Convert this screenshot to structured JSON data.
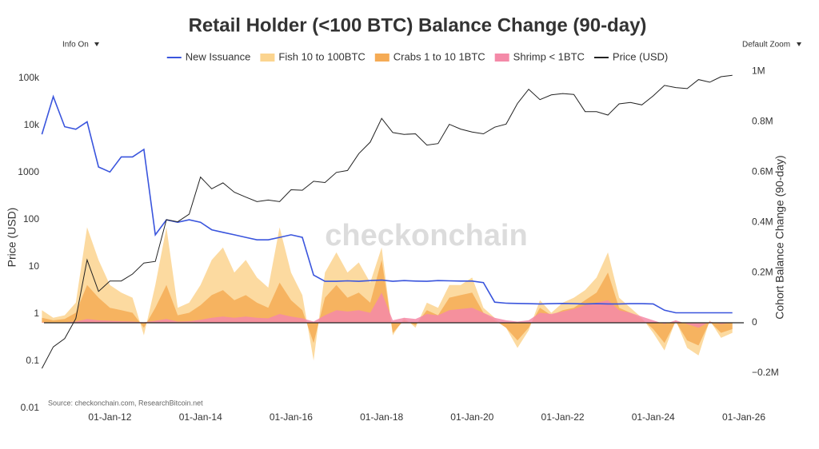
{
  "ui": {
    "info_toggle": "Info On",
    "zoom_menu": "Default Zoom"
  },
  "chart_data": {
    "type": "combo",
    "title": "Retail Holder (<100 BTC) Balance Change (90-day)",
    "y_label": "Price (USD)",
    "y2_label": "Cohort Balance Change (90-day)",
    "watermark": "checkonchain",
    "source": "Source: checkonchain.com, ResearchBitcoin.net",
    "y_scale": "log",
    "xlim": [
      "2010-07-18",
      "2026-01-01"
    ],
    "xticks": [
      {
        "value": "2012-01-01",
        "label": "01-Jan-12"
      },
      {
        "value": "2014-01-01",
        "label": "01-Jan-14"
      },
      {
        "value": "2016-01-01",
        "label": "01-Jan-16"
      },
      {
        "value": "2018-01-01",
        "label": "01-Jan-18"
      },
      {
        "value": "2020-01-01",
        "label": "01-Jan-20"
      },
      {
        "value": "2022-01-01",
        "label": "01-Jan-22"
      },
      {
        "value": "2024-01-01",
        "label": "01-Jan-24"
      },
      {
        "value": "2026-01-01",
        "label": "01-Jan-26"
      }
    ],
    "ylim": [
      0.01,
      200000
    ],
    "yticks": [
      0.01,
      0.1,
      1,
      10,
      100,
      1000,
      {
        "value": 10000,
        "label": "10k"
      },
      {
        "value": 100000,
        "label": "100k"
      }
    ],
    "y2lim": [
      -340000,
      1030000
    ],
    "y2ticks": [
      {
        "value": -200000,
        "label": "−0.2M"
      },
      0,
      {
        "value": 200000,
        "label": "0.2M"
      },
      {
        "value": 400000,
        "label": "0.4M"
      },
      {
        "value": 600000,
        "label": "0.6M"
      },
      {
        "value": 800000,
        "label": "0.8M"
      },
      {
        "value": 1000000,
        "label": "1M"
      }
    ],
    "x": [
      "2010-07-01",
      "2010-10-01",
      "2011-01-01",
      "2011-04-01",
      "2011-07-01",
      "2011-10-01",
      "2012-01-01",
      "2012-04-01",
      "2012-07-01",
      "2012-10-01",
      "2013-01-01",
      "2013-04-01",
      "2013-07-01",
      "2013-10-01",
      "2014-01-01",
      "2014-04-01",
      "2014-07-01",
      "2014-10-01",
      "2015-01-01",
      "2015-04-01",
      "2015-07-01",
      "2015-10-01",
      "2016-01-01",
      "2016-04-01",
      "2016-07-01",
      "2016-10-01",
      "2017-01-01",
      "2017-04-01",
      "2017-07-01",
      "2017-10-01",
      "2018-01-01",
      "2018-04-01",
      "2018-07-01",
      "2018-10-01",
      "2019-01-01",
      "2019-04-01",
      "2019-07-01",
      "2019-10-01",
      "2020-01-01",
      "2020-04-01",
      "2020-07-01",
      "2020-10-01",
      "2021-01-01",
      "2021-04-01",
      "2021-07-01",
      "2021-10-01",
      "2022-01-01",
      "2022-04-01",
      "2022-07-01",
      "2022-10-01",
      "2023-01-01",
      "2023-04-01",
      "2023-07-01",
      "2023-10-01",
      "2024-01-01",
      "2024-04-01",
      "2024-07-01",
      "2024-10-01",
      "2025-01-01",
      "2025-04-01",
      "2025-07-01",
      "2025-10-01"
    ],
    "series": [
      {
        "name": "Fish 10 to 100BTC",
        "type": "area",
        "axis": "y2",
        "color": "#fbd48f",
        "values": [
          50000,
          20000,
          30000,
          80000,
          380000,
          250000,
          150000,
          120000,
          100000,
          -50000,
          150000,
          380000,
          60000,
          80000,
          150000,
          250000,
          300000,
          200000,
          250000,
          180000,
          140000,
          380000,
          200000,
          110000,
          -150000,
          200000,
          280000,
          200000,
          240000,
          160000,
          300000,
          -50000,
          20000,
          -20000,
          80000,
          60000,
          150000,
          150000,
          180000,
          60000,
          20000,
          -20000,
          -100000,
          -30000,
          90000,
          40000,
          80000,
          100000,
          130000,
          180000,
          280000,
          100000,
          60000,
          20000,
          -40000,
          -110000,
          10000,
          -100000,
          -130000,
          10000,
          -60000,
          -40000
        ]
      },
      {
        "name": "Crabs 1 to 10 1BTC",
        "type": "area",
        "axis": "y2",
        "color": "#f5ab55",
        "values": [
          20000,
          10000,
          15000,
          40000,
          150000,
          100000,
          60000,
          50000,
          40000,
          -20000,
          60000,
          150000,
          30000,
          40000,
          70000,
          110000,
          130000,
          90000,
          110000,
          80000,
          60000,
          160000,
          90000,
          50000,
          -80000,
          100000,
          150000,
          100000,
          120000,
          80000,
          250000,
          -40000,
          10000,
          -10000,
          50000,
          30000,
          100000,
          110000,
          120000,
          40000,
          10000,
          -20000,
          -70000,
          -20000,
          60000,
          30000,
          50000,
          60000,
          90000,
          120000,
          200000,
          60000,
          40000,
          15000,
          -25000,
          -80000,
          5000,
          -70000,
          -90000,
          5000,
          -40000,
          -25000
        ]
      },
      {
        "name": "Shrimp < 1BTC",
        "type": "area",
        "axis": "y2",
        "color": "#f48aa8",
        "values": [
          2000,
          1000,
          2000,
          5000,
          15000,
          10000,
          8000,
          6000,
          5000,
          2000,
          8000,
          15000,
          5000,
          6000,
          12000,
          20000,
          25000,
          20000,
          25000,
          20000,
          18000,
          35000,
          25000,
          18000,
          5000,
          30000,
          50000,
          45000,
          50000,
          40000,
          120000,
          10000,
          20000,
          15000,
          35000,
          30000,
          50000,
          55000,
          60000,
          40000,
          20000,
          10000,
          5000,
          10000,
          40000,
          35000,
          45000,
          55000,
          70000,
          80000,
          90000,
          50000,
          40000,
          25000,
          10000,
          -5000,
          10000,
          -5000,
          -20000,
          5000,
          -5000,
          0
        ]
      },
      {
        "name": "New Issuance",
        "type": "line",
        "axis": "y2",
        "color": "#3a55dd",
        "values": [
          750000,
          900000,
          780000,
          770000,
          800000,
          620000,
          600000,
          660000,
          660000,
          690000,
          350000,
          410000,
          400000,
          410000,
          400000,
          370000,
          360000,
          350000,
          340000,
          330000,
          330000,
          340000,
          350000,
          340000,
          190000,
          165000,
          165000,
          167000,
          165000,
          168000,
          170000,
          165000,
          168000,
          166000,
          165000,
          168000,
          167000,
          166000,
          166000,
          160000,
          82000,
          78000,
          77000,
          76000,
          75000,
          76000,
          77000,
          76000,
          75000,
          76000,
          75000,
          75000,
          76000,
          76000,
          75000,
          50000,
          40000,
          40000,
          40000,
          40000,
          40000,
          40000
        ]
      },
      {
        "name": "Price (USD)",
        "type": "line",
        "axis": "y",
        "color": "#222222",
        "values": [
          0.07,
          0.2,
          0.3,
          0.8,
          14,
          3,
          5,
          5,
          7,
          12,
          13,
          100,
          90,
          130,
          800,
          450,
          600,
          380,
          300,
          240,
          260,
          240,
          430,
          420,
          650,
          610,
          1000,
          1100,
          2500,
          4400,
          14000,
          7000,
          6400,
          6600,
          3800,
          4100,
          10500,
          8300,
          7200,
          6600,
          9100,
          10600,
          29000,
          58000,
          35000,
          44000,
          47000,
          45000,
          19500,
          19400,
          16500,
          28400,
          30500,
          27000,
          42000,
          70000,
          63000,
          60000,
          93000,
          82000,
          107000,
          115000
        ]
      }
    ],
    "legend_order": [
      3,
      0,
      1,
      2,
      4
    ]
  }
}
